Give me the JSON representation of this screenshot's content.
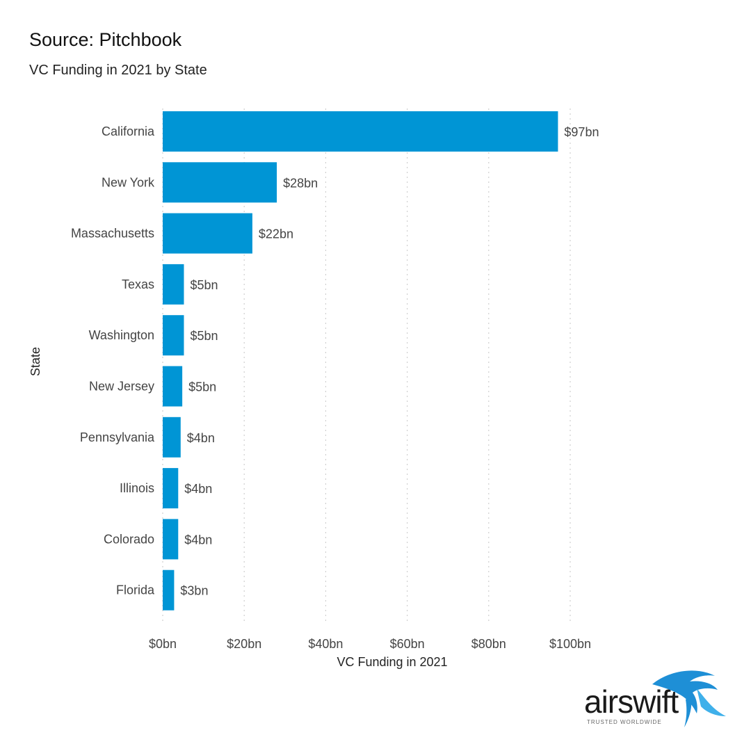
{
  "header": {
    "source": "Source: Pitchbook",
    "title": "VC Funding in 2021 by State"
  },
  "chart_data": {
    "type": "bar",
    "orientation": "horizontal",
    "title": "VC Funding in 2021 by State",
    "xlabel": "VC Funding in 2021",
    "ylabel": "State",
    "categories": [
      "California",
      "New York",
      "Massachusetts",
      "Texas",
      "Washington",
      "New Jersey",
      "Pennsylvania",
      "Illinois",
      "Colorado",
      "Florida"
    ],
    "values": [
      97,
      28,
      22,
      5.2,
      5.2,
      4.8,
      4.4,
      3.8,
      3.8,
      2.8
    ],
    "value_labels": [
      "$97bn",
      "$28bn",
      "$22bn",
      "$5bn",
      "$5bn",
      "$5bn",
      "$4bn",
      "$4bn",
      "$4bn",
      "$3bn"
    ],
    "xlim": [
      0,
      100
    ],
    "x_ticks": [
      0,
      20,
      40,
      60,
      80,
      100
    ],
    "x_tick_labels": [
      "$0bn",
      "$20bn",
      "$40bn",
      "$60bn",
      "$80bn",
      "$100bn"
    ],
    "grid": "vertical dotted",
    "bar_color": "#0095d5"
  },
  "logo": {
    "word": "airswift",
    "tagline": "TRUSTED WORLDWIDE",
    "color": "#1e8fd6"
  }
}
